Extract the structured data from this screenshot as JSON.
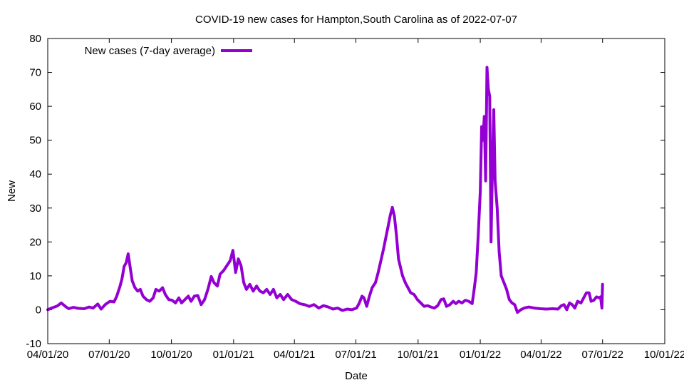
{
  "chart_data": {
    "type": "line",
    "title": "COVID-19 new cases for Hampton,South Carolina as of 2022-07-07",
    "xlabel": "Date",
    "ylabel": "New",
    "xlim": [
      "2020-04-01",
      "2022-10-01"
    ],
    "ylim": [
      -10,
      80
    ],
    "x_ticks": [
      "04/01/20",
      "07/01/20",
      "10/01/20",
      "01/01/21",
      "04/01/21",
      "07/01/21",
      "10/01/21",
      "01/01/22",
      "04/01/22",
      "07/01/22",
      "10/01/22"
    ],
    "x_tick_dates": [
      "2020-04-01",
      "2020-07-01",
      "2020-10-01",
      "2021-01-01",
      "2021-04-01",
      "2021-07-01",
      "2021-10-01",
      "2022-01-01",
      "2022-04-01",
      "2022-07-01",
      "2022-10-01"
    ],
    "y_ticks": [
      -10,
      0,
      10,
      20,
      30,
      40,
      50,
      60,
      70,
      80
    ],
    "grid": false,
    "legend_position": "top-left",
    "series": [
      {
        "name": "New cases (7-day average)",
        "color": "#9400d3",
        "points": [
          [
            "2020-04-01",
            0.0
          ],
          [
            "2020-04-08",
            0.6
          ],
          [
            "2020-04-15",
            1.1
          ],
          [
            "2020-04-21",
            2.0
          ],
          [
            "2020-04-27",
            1.0
          ],
          [
            "2020-05-02",
            0.3
          ],
          [
            "2020-05-09",
            0.7
          ],
          [
            "2020-05-16",
            0.4
          ],
          [
            "2020-05-25",
            0.3
          ],
          [
            "2020-06-01",
            0.8
          ],
          [
            "2020-06-07",
            0.5
          ],
          [
            "2020-06-14",
            1.7
          ],
          [
            "2020-06-19",
            0.2
          ],
          [
            "2020-06-25",
            1.5
          ],
          [
            "2020-07-02",
            2.5
          ],
          [
            "2020-07-08",
            2.3
          ],
          [
            "2020-07-12",
            3.9
          ],
          [
            "2020-07-17",
            7.0
          ],
          [
            "2020-07-20",
            9.2
          ],
          [
            "2020-07-23",
            12.8
          ],
          [
            "2020-07-26",
            13.8
          ],
          [
            "2020-07-29",
            16.5
          ],
          [
            "2020-08-01",
            12.5
          ],
          [
            "2020-08-04",
            8.5
          ],
          [
            "2020-08-08",
            6.5
          ],
          [
            "2020-08-12",
            5.5
          ],
          [
            "2020-08-16",
            6.0
          ],
          [
            "2020-08-20",
            4.0
          ],
          [
            "2020-08-25",
            3.0
          ],
          [
            "2020-08-30",
            2.5
          ],
          [
            "2020-09-04",
            3.5
          ],
          [
            "2020-09-08",
            6.0
          ],
          [
            "2020-09-13",
            5.5
          ],
          [
            "2020-09-18",
            6.5
          ],
          [
            "2020-09-22",
            4.5
          ],
          [
            "2020-09-27",
            3.0
          ],
          [
            "2020-10-02",
            2.8
          ],
          [
            "2020-10-07",
            2.0
          ],
          [
            "2020-10-12",
            3.5
          ],
          [
            "2020-10-16",
            2.0
          ],
          [
            "2020-10-21",
            3.0
          ],
          [
            "2020-10-26",
            4.0
          ],
          [
            "2020-10-30",
            2.5
          ],
          [
            "2020-11-04",
            4.0
          ],
          [
            "2020-11-09",
            4.2
          ],
          [
            "2020-11-14",
            1.5
          ],
          [
            "2020-11-19",
            3.0
          ],
          [
            "2020-11-24",
            6.0
          ],
          [
            "2020-11-29",
            9.8
          ],
          [
            "2020-12-03",
            8.0
          ],
          [
            "2020-12-08",
            7.0
          ],
          [
            "2020-12-12",
            10.5
          ],
          [
            "2020-12-17",
            11.5
          ],
          [
            "2020-12-22",
            13.0
          ],
          [
            "2020-12-27",
            14.5
          ],
          [
            "2020-12-31",
            17.5
          ],
          [
            "2021-01-04",
            11.0
          ],
          [
            "2021-01-08",
            15.0
          ],
          [
            "2021-01-12",
            13.0
          ],
          [
            "2021-01-16",
            8.0
          ],
          [
            "2021-01-20",
            6.0
          ],
          [
            "2021-01-25",
            7.5
          ],
          [
            "2021-01-30",
            5.5
          ],
          [
            "2021-02-04",
            7.0
          ],
          [
            "2021-02-09",
            5.5
          ],
          [
            "2021-02-14",
            5.0
          ],
          [
            "2021-02-19",
            6.0
          ],
          [
            "2021-02-24",
            4.5
          ],
          [
            "2021-03-01",
            6.0
          ],
          [
            "2021-03-06",
            3.5
          ],
          [
            "2021-03-11",
            4.5
          ],
          [
            "2021-03-16",
            3.0
          ],
          [
            "2021-03-22",
            4.5
          ],
          [
            "2021-03-28",
            3.0
          ],
          [
            "2021-04-03",
            2.5
          ],
          [
            "2021-04-09",
            1.8
          ],
          [
            "2021-04-16",
            1.5
          ],
          [
            "2021-04-23",
            1.0
          ],
          [
            "2021-04-30",
            1.5
          ],
          [
            "2021-05-07",
            0.5
          ],
          [
            "2021-05-14",
            1.2
          ],
          [
            "2021-05-21",
            0.8
          ],
          [
            "2021-05-28",
            0.2
          ],
          [
            "2021-06-04",
            0.5
          ],
          [
            "2021-06-11",
            -0.2
          ],
          [
            "2021-06-18",
            0.2
          ],
          [
            "2021-06-25",
            0.0
          ],
          [
            "2021-07-02",
            0.5
          ],
          [
            "2021-07-06",
            2.0
          ],
          [
            "2021-07-10",
            4.0
          ],
          [
            "2021-07-13",
            3.5
          ],
          [
            "2021-07-17",
            1.0
          ],
          [
            "2021-07-21",
            4.0
          ],
          [
            "2021-07-25",
            6.5
          ],
          [
            "2021-07-30",
            8.0
          ],
          [
            "2021-08-03",
            11.0
          ],
          [
            "2021-08-07",
            14.5
          ],
          [
            "2021-08-11",
            18.0
          ],
          [
            "2021-08-15",
            22.0
          ],
          [
            "2021-08-18",
            25.0
          ],
          [
            "2021-08-21",
            28.0
          ],
          [
            "2021-08-24",
            30.2
          ],
          [
            "2021-08-27",
            27.5
          ],
          [
            "2021-08-30",
            22.0
          ],
          [
            "2021-09-02",
            15.0
          ],
          [
            "2021-09-05",
            12.5
          ],
          [
            "2021-09-08",
            10.0
          ],
          [
            "2021-09-12",
            8.0
          ],
          [
            "2021-09-16",
            6.5
          ],
          [
            "2021-09-20",
            5.0
          ],
          [
            "2021-09-25",
            4.5
          ],
          [
            "2021-09-30",
            3.0
          ],
          [
            "2021-10-05",
            2.0
          ],
          [
            "2021-10-10",
            1.0
          ],
          [
            "2021-10-15",
            1.2
          ],
          [
            "2021-10-20",
            0.8
          ],
          [
            "2021-10-25",
            0.5
          ],
          [
            "2021-10-30",
            1.2
          ],
          [
            "2021-11-04",
            3.0
          ],
          [
            "2021-11-08",
            3.2
          ],
          [
            "2021-11-12",
            1.0
          ],
          [
            "2021-11-17",
            1.5
          ],
          [
            "2021-11-22",
            2.5
          ],
          [
            "2021-11-26",
            1.8
          ],
          [
            "2021-11-30",
            2.5
          ],
          [
            "2021-12-05",
            2.0
          ],
          [
            "2021-12-10",
            2.8
          ],
          [
            "2021-12-15",
            2.5
          ],
          [
            "2021-12-20",
            1.8
          ],
          [
            "2021-12-23",
            6.0
          ],
          [
            "2021-12-26",
            11.0
          ],
          [
            "2021-12-29",
            22.0
          ],
          [
            "2022-01-01",
            35.0
          ],
          [
            "2022-01-03",
            54.0
          ],
          [
            "2022-01-05",
            50.0
          ],
          [
            "2022-01-07",
            57.0
          ],
          [
            "2022-01-09",
            38.0
          ],
          [
            "2022-01-11",
            71.5
          ],
          [
            "2022-01-13",
            65.0
          ],
          [
            "2022-01-15",
            63.0
          ],
          [
            "2022-01-17",
            20.0
          ],
          [
            "2022-01-19",
            42.0
          ],
          [
            "2022-01-21",
            59.0
          ],
          [
            "2022-01-23",
            38.0
          ],
          [
            "2022-01-26",
            30.0
          ],
          [
            "2022-01-29",
            17.0
          ],
          [
            "2022-02-01",
            10.0
          ],
          [
            "2022-02-05",
            8.0
          ],
          [
            "2022-02-09",
            6.0
          ],
          [
            "2022-02-13",
            3.0
          ],
          [
            "2022-02-17",
            2.0
          ],
          [
            "2022-02-21",
            1.5
          ],
          [
            "2022-02-25",
            -0.8
          ],
          [
            "2022-03-02",
            0.0
          ],
          [
            "2022-03-07",
            0.5
          ],
          [
            "2022-03-14",
            0.8
          ],
          [
            "2022-03-22",
            0.5
          ],
          [
            "2022-03-31",
            0.3
          ],
          [
            "2022-04-09",
            0.2
          ],
          [
            "2022-04-18",
            0.3
          ],
          [
            "2022-04-26",
            0.2
          ],
          [
            "2022-05-01",
            1.2
          ],
          [
            "2022-05-05",
            1.5
          ],
          [
            "2022-05-09",
            0.0
          ],
          [
            "2022-05-13",
            2.0
          ],
          [
            "2022-05-17",
            1.5
          ],
          [
            "2022-05-21",
            0.5
          ],
          [
            "2022-05-25",
            2.5
          ],
          [
            "2022-05-30",
            2.0
          ],
          [
            "2022-06-03",
            3.5
          ],
          [
            "2022-06-07",
            5.0
          ],
          [
            "2022-06-11",
            5.0
          ],
          [
            "2022-06-14",
            2.5
          ],
          [
            "2022-06-18",
            2.8
          ],
          [
            "2022-06-22",
            3.8
          ],
          [
            "2022-06-26",
            3.5
          ],
          [
            "2022-06-28",
            3.8
          ],
          [
            "2022-06-30",
            0.5
          ],
          [
            "2022-07-01",
            7.5
          ]
        ]
      }
    ]
  }
}
